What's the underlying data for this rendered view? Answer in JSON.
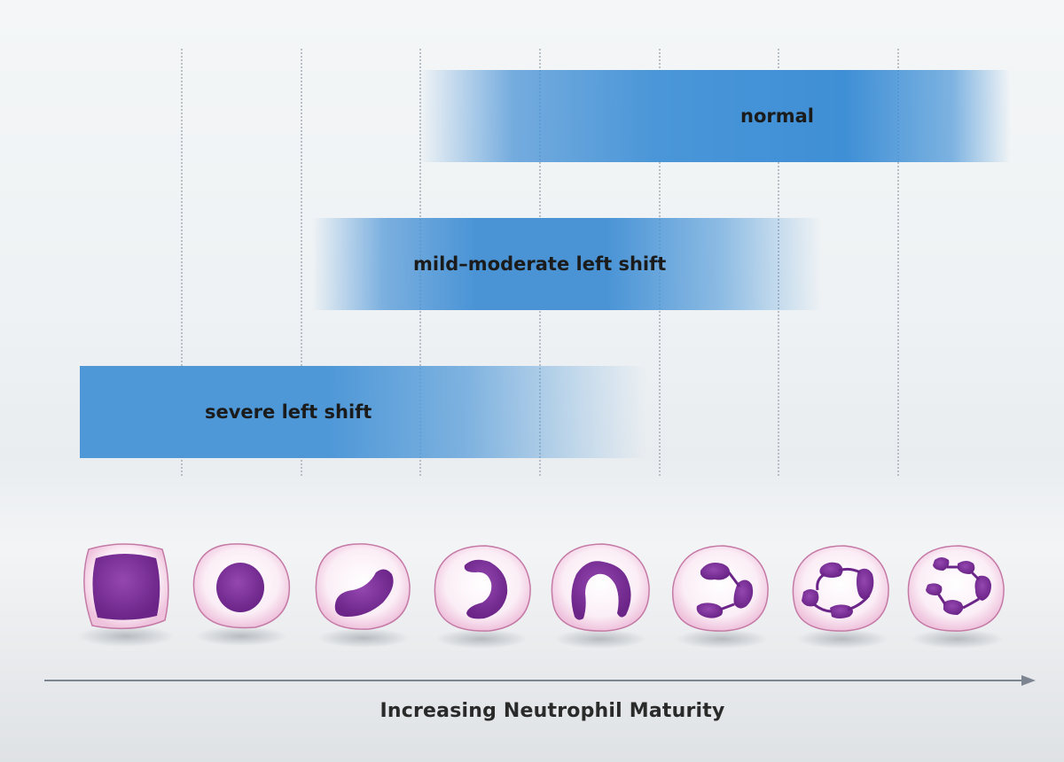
{
  "bands": {
    "normal": "normal",
    "mild": "mild–moderate left shift",
    "severe": "severe left shift"
  },
  "axis": {
    "label": "Increasing Neutrophil Maturity"
  },
  "colors": {
    "band": "#4a96d8",
    "cell_membrane": "#e7a9cc",
    "cell_cytoplasm": "#fbf1f7",
    "nucleus": "#7b2f98",
    "grid": "#b7bec6",
    "arrow": "#7d8690"
  },
  "cells": [
    {
      "stage": "myeloblast"
    },
    {
      "stage": "promyelocyte"
    },
    {
      "stage": "myelocyte"
    },
    {
      "stage": "metamyelocyte"
    },
    {
      "stage": "band"
    },
    {
      "stage": "segmented-3-lobe"
    },
    {
      "stage": "segmented-4-lobe"
    },
    {
      "stage": "hypersegmented"
    }
  ]
}
